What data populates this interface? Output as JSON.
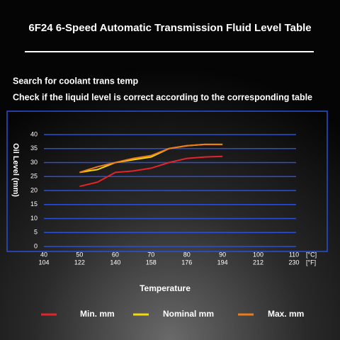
{
  "chart_data": {
    "type": "line",
    "title": "6F24 6-Speed Automatic Transmission Fluid Level Table",
    "subtitle": "Search for coolant trans temp",
    "instruction": "Check if the liquid level is correct according to the corresponding table",
    "xlabel": "Temperature",
    "ylabel": "Oil Level (mm)",
    "x": [
      50,
      55,
      60,
      65,
      70,
      75,
      80,
      85,
      90
    ],
    "series": [
      {
        "name": "Min. mm",
        "color": "#e3242b",
        "values": [
          21.5,
          23,
          26.5,
          27,
          28,
          30,
          31.5,
          32,
          32.2
        ]
      },
      {
        "name": "Nominal mm",
        "color": "#f5d90a",
        "values": [
          26.5,
          27.5,
          30,
          31,
          32,
          35,
          36,
          36.5,
          36.5
        ]
      },
      {
        "name": "Max. mm",
        "color": "#f07a1a",
        "values": [
          26.5,
          28.5,
          30,
          31.5,
          32.5,
          35,
          36,
          36.5,
          36.5
        ]
      }
    ],
    "xlim": [
      40,
      110
    ],
    "xticks": [
      40,
      50,
      60,
      70,
      80,
      90,
      100,
      110
    ],
    "x_unit": "[°C]",
    "x2lim": [
      104,
      230
    ],
    "x2ticks": [
      104,
      122,
      140,
      158,
      176,
      194,
      212,
      230
    ],
    "x2_unit": "[°F]",
    "ylim": [
      0,
      40
    ],
    "yticks": [
      0,
      5,
      10,
      15,
      20,
      25,
      30,
      35,
      40
    ],
    "grid": true
  }
}
